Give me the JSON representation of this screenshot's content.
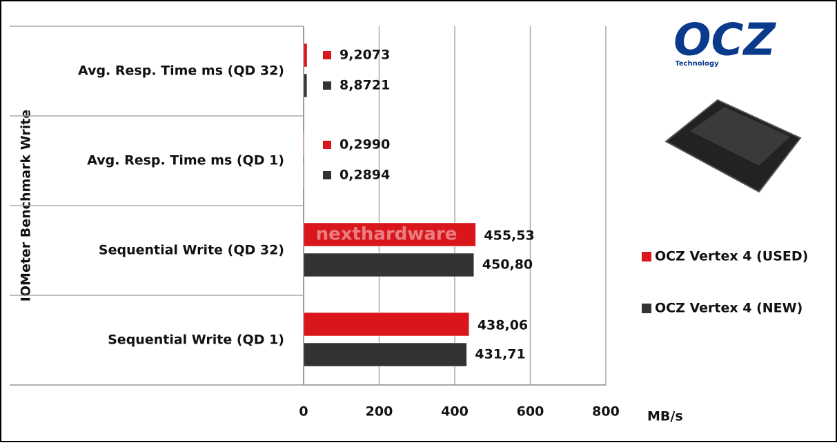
{
  "chart_data": {
    "type": "barh",
    "y_axis_title": "IOMeter Benchmark Write",
    "x_axis_label": "MB/s",
    "brand": "OCZ",
    "brand_subtitle": "Technology",
    "watermark": "nexthardware",
    "categories": [
      "Avg. Resp. Time ms (QD 32)",
      "Avg. Resp. Time ms (QD 1)",
      "Sequential Write (QD 32)",
      "Sequential Write (QD 1)"
    ],
    "series": [
      {
        "name": "OCZ Vertex 4 (USED)",
        "color": "#d9161c",
        "values": [
          9.2073,
          0.299,
          455.53,
          438.06
        ],
        "value_labels": [
          "9,2073",
          "0,2990",
          "455,53",
          "438,06"
        ]
      },
      {
        "name": "OCZ Vertex 4 (NEW)",
        "color": "#333333",
        "values": [
          8.8721,
          0.2894,
          450.8,
          431.71
        ],
        "value_labels": [
          "8,8721",
          "0,2894",
          "450,80",
          "431,71"
        ]
      }
    ],
    "xlim": [
      0,
      800
    ],
    "xticks": [
      0,
      200,
      400,
      600,
      800
    ],
    "grid": true,
    "legend": "right"
  }
}
